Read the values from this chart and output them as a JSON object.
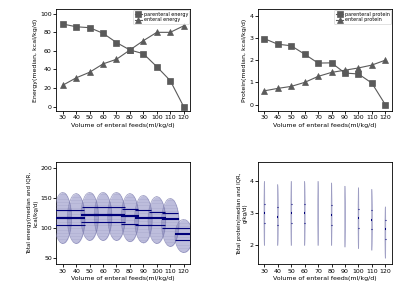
{
  "x_ticks": [
    30,
    40,
    50,
    60,
    70,
    80,
    90,
    100,
    110,
    120
  ],
  "parenteral_energy": [
    89,
    86,
    85,
    79,
    69,
    61,
    57,
    43,
    28,
    0
  ],
  "enteral_energy": [
    23,
    31,
    37,
    46,
    51,
    61,
    71,
    80,
    80,
    87
  ],
  "parenteral_protein": [
    2.97,
    2.72,
    2.65,
    2.27,
    1.87,
    1.88,
    1.42,
    1.38,
    0.97,
    0.0
  ],
  "enteral_protein": [
    0.62,
    0.73,
    0.82,
    1.0,
    1.27,
    1.45,
    1.55,
    1.65,
    1.78,
    2.0
  ],
  "violin_x": [
    30,
    40,
    50,
    60,
    70,
    80,
    90,
    100,
    110,
    120
  ],
  "total_energy_median": [
    118,
    117,
    122,
    122,
    122,
    120,
    117,
    117,
    115,
    90
  ],
  "total_energy_q1": [
    105,
    105,
    110,
    110,
    110,
    108,
    106,
    105,
    100,
    80
  ],
  "total_energy_q3": [
    130,
    130,
    135,
    135,
    135,
    133,
    130,
    128,
    125,
    100
  ],
  "total_energy_min": [
    75,
    75,
    80,
    80,
    80,
    78,
    76,
    75,
    70,
    60
  ],
  "total_energy_max": [
    160,
    158,
    160,
    160,
    160,
    158,
    155,
    153,
    150,
    115
  ],
  "total_protein_median": [
    3.0,
    2.9,
    3.0,
    3.0,
    3.0,
    2.95,
    2.9,
    2.85,
    2.8,
    2.5
  ],
  "total_protein_q1": [
    2.7,
    2.65,
    2.7,
    2.7,
    2.7,
    2.65,
    2.6,
    2.55,
    2.5,
    2.2
  ],
  "total_protein_q3": [
    3.3,
    3.2,
    3.3,
    3.3,
    3.3,
    3.25,
    3.2,
    3.15,
    3.1,
    2.8
  ],
  "total_protein_min": [
    2.0,
    2.0,
    2.0,
    2.0,
    2.0,
    2.0,
    1.95,
    1.9,
    1.85,
    1.6
  ],
  "total_protein_max": [
    4.0,
    3.9,
    4.0,
    4.0,
    4.0,
    3.95,
    3.85,
    3.8,
    3.75,
    3.2
  ],
  "line_color": "#5a5a5a",
  "violin_fill_color": "#9999cc",
  "violin_line_color": "#7777aa",
  "median_line_color": "#00007a",
  "square_marker": "s",
  "triangle_marker": "^",
  "marker_size": 4,
  "marker_color": "#5a5a5a"
}
